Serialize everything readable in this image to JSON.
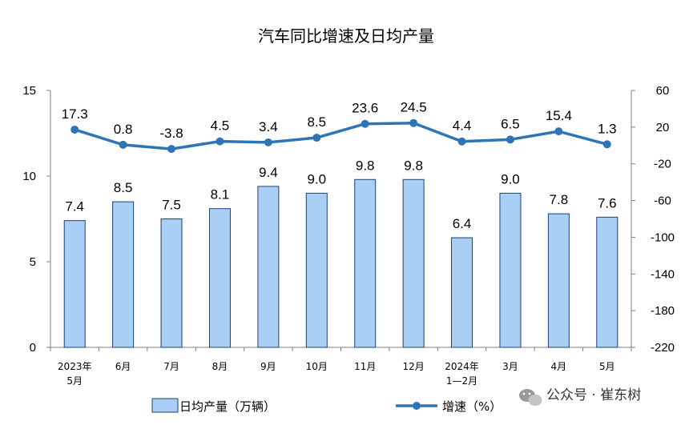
{
  "chart_data": {
    "type": "bar",
    "title": "汽车同比增速及日均产量",
    "categories": [
      [
        "2023年",
        "5月"
      ],
      [
        "6月"
      ],
      [
        "7月"
      ],
      [
        "8月"
      ],
      [
        "9月"
      ],
      [
        "10月"
      ],
      [
        "11月"
      ],
      [
        "12月"
      ],
      [
        "2024年",
        "1—2月"
      ],
      [
        "3月"
      ],
      [
        "4月"
      ],
      [
        "5月"
      ]
    ],
    "series": [
      {
        "name": "日均产量（万辆）",
        "type": "bar",
        "axis": "left",
        "values": [
          7.4,
          8.5,
          7.5,
          8.1,
          9.4,
          9.0,
          9.8,
          9.8,
          6.4,
          9.0,
          7.8,
          7.6
        ],
        "labels": [
          "7.4",
          "8.5",
          "7.5",
          "8.1",
          "9.4",
          "9.0",
          "9.8",
          "9.8",
          "6.4",
          "9.0",
          "7.8",
          "7.6"
        ]
      },
      {
        "name": "增速（%）",
        "type": "line",
        "axis": "right",
        "values": [
          17.3,
          0.8,
          -3.8,
          4.5,
          3.4,
          8.5,
          23.6,
          24.5,
          4.4,
          6.5,
          15.4,
          1.3
        ],
        "labels": [
          "17.3",
          "0.8",
          "-3.8",
          "4.5",
          "3.4",
          "8.5",
          "23.6",
          "24.5",
          "4.4",
          "6.5",
          "15.4",
          "1.3"
        ]
      }
    ],
    "y_left": {
      "ylim": [
        0,
        15
      ],
      "ticks": [
        "0",
        "5",
        "10",
        "15"
      ],
      "tick_values": [
        0,
        5,
        10,
        15
      ]
    },
    "y_right": {
      "ylim": [
        -220,
        60
      ],
      "ticks": [
        "60",
        "20",
        "-20",
        "-60",
        "-100",
        "-140",
        "-180",
        "-220"
      ],
      "tick_values": [
        60,
        20,
        -20,
        -60,
        -100,
        -140,
        -180,
        -220
      ]
    },
    "grid": false,
    "legend_position": "bottom",
    "colors": {
      "bar_fill": "#a9d0f4",
      "bar_stroke": "#1f3f73",
      "line": "#2e75b6",
      "axis": "#7f7f7f"
    }
  },
  "watermark": {
    "text": "公众号 · 崔东树",
    "icon": "wechat-icon"
  }
}
